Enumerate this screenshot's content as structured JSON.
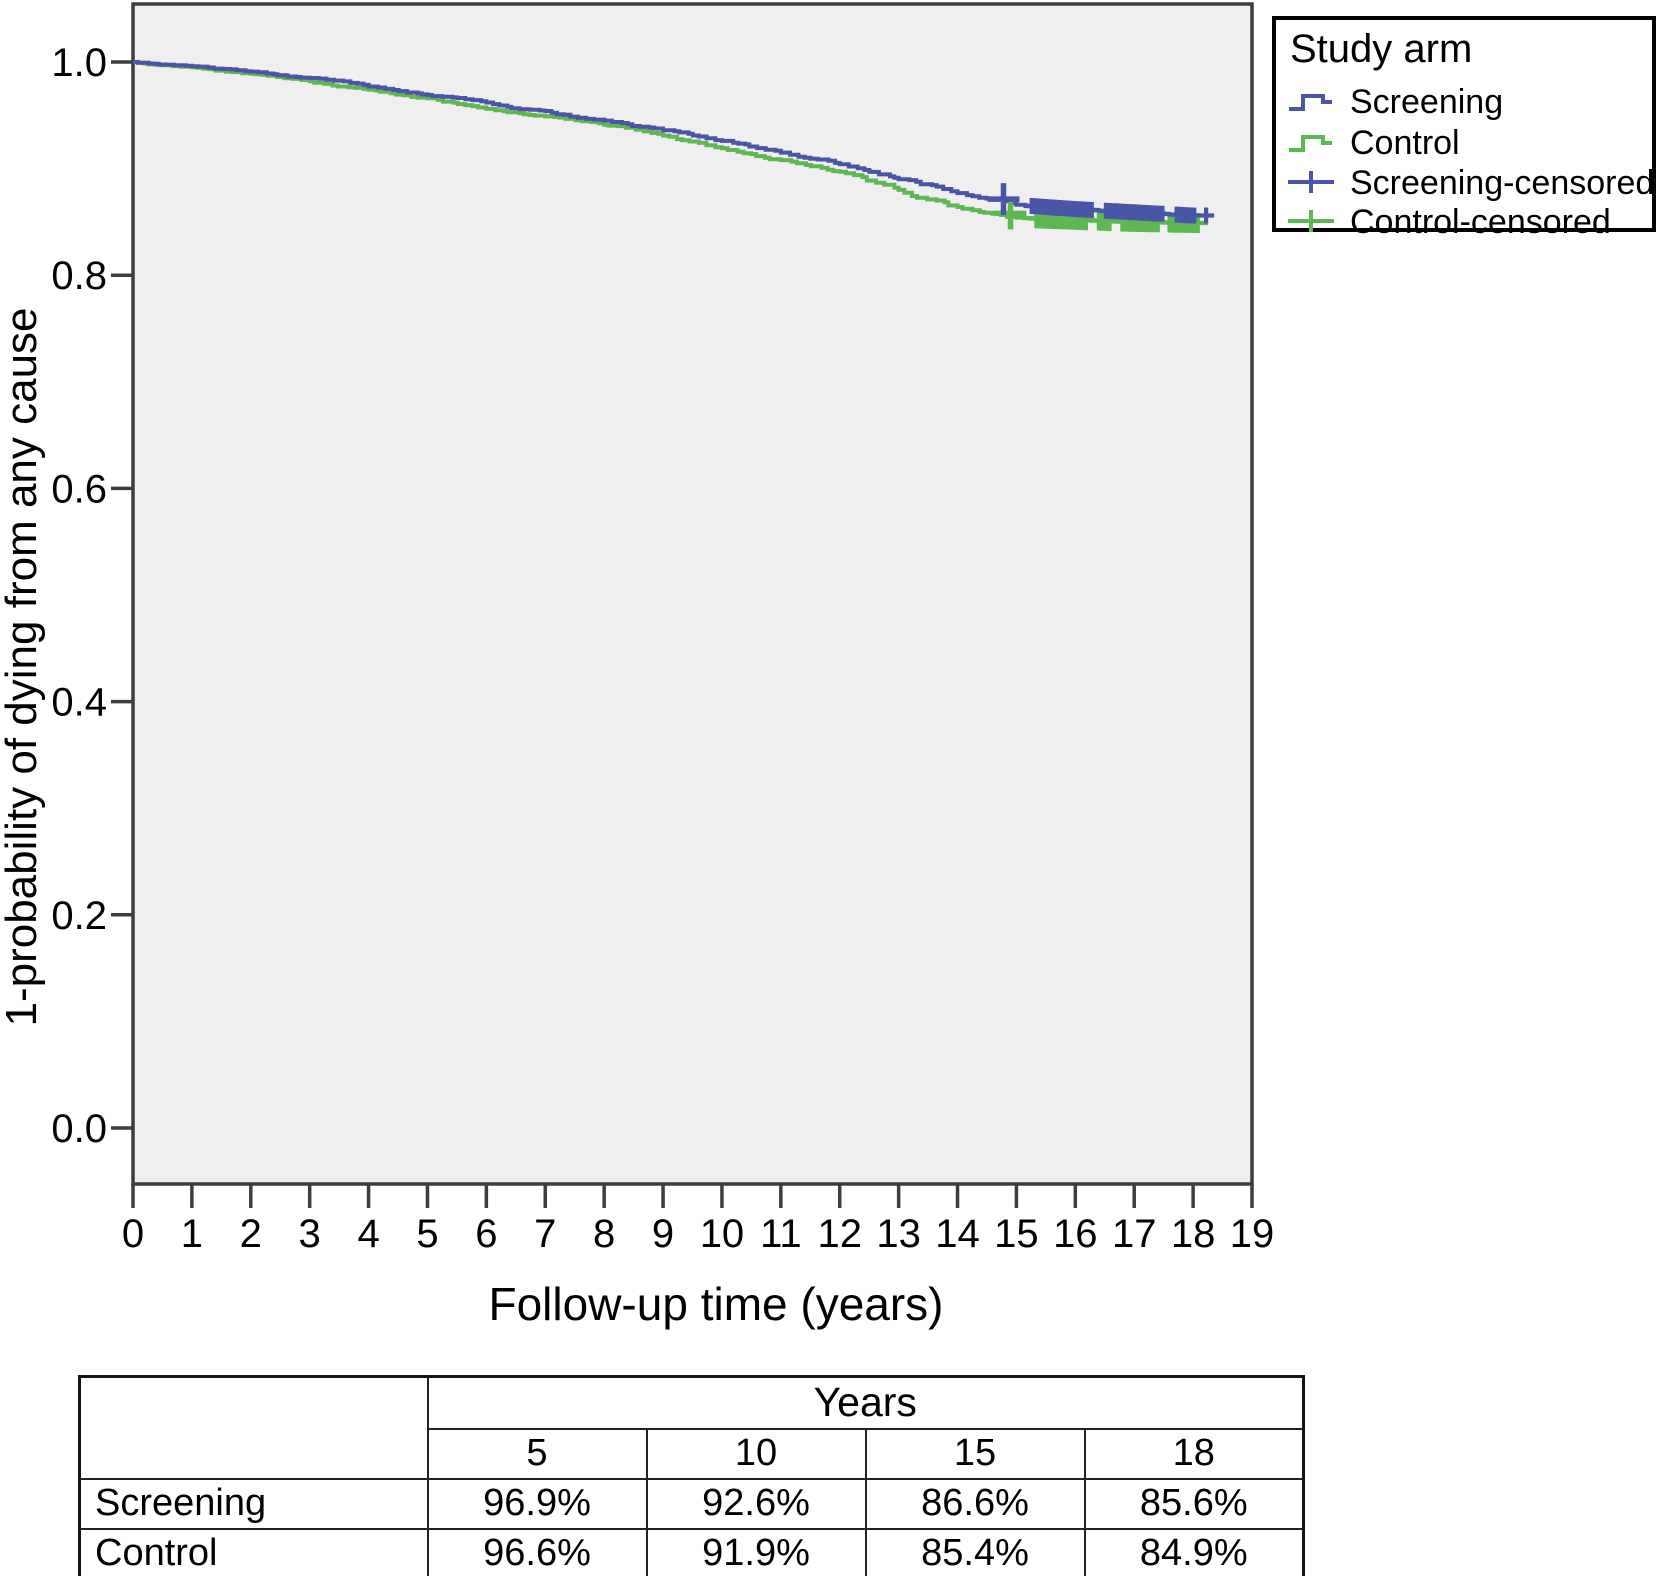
{
  "figure": {
    "x_axis_title": "Follow-up time (years)",
    "y_axis_title": "1-probability of dying from any cause"
  },
  "legend": {
    "title": "Study arm",
    "items": [
      {
        "label": "Screening",
        "color": "#4a55a8",
        "type": "line"
      },
      {
        "label": "Control",
        "color": "#5db854",
        "type": "line"
      },
      {
        "label": "Screening-censored",
        "color": "#4a55a8",
        "type": "plus"
      },
      {
        "label": "Control-censored",
        "color": "#5db854",
        "type": "plus"
      }
    ]
  },
  "chart_data": {
    "type": "line",
    "subtype": "kaplan-meier-survival",
    "title": "",
    "xlabel": "Follow-up time (years)",
    "ylabel": "1-probability of dying from any cause",
    "xlim": [
      0,
      19
    ],
    "ylim": [
      0.0,
      1.0
    ],
    "x_ticks": [
      0,
      1,
      2,
      3,
      4,
      5,
      6,
      7,
      8,
      9,
      10,
      11,
      12,
      13,
      14,
      15,
      16,
      17,
      18,
      19
    ],
    "y_ticks": [
      0.0,
      0.2,
      0.4,
      0.6,
      0.8,
      1.0
    ],
    "grid": false,
    "plot_bg": "#f0efef",
    "axis_color": "#3d3d3d",
    "legend_position": "outside-top-right",
    "series": [
      {
        "name": "Screening",
        "color": "#4a55a8",
        "anchors": [
          [
            0,
            1.0
          ],
          [
            1,
            0.996
          ],
          [
            2,
            0.991
          ],
          [
            3,
            0.985
          ],
          [
            4,
            0.977
          ],
          [
            5,
            0.969
          ],
          [
            6,
            0.962
          ],
          [
            7,
            0.954
          ],
          [
            8,
            0.945
          ],
          [
            9,
            0.936
          ],
          [
            10,
            0.926
          ],
          [
            11,
            0.915
          ],
          [
            12,
            0.904
          ],
          [
            13,
            0.89
          ],
          [
            14,
            0.877
          ],
          [
            15,
            0.866
          ],
          [
            16,
            0.862
          ],
          [
            17,
            0.859
          ],
          [
            18,
            0.856
          ],
          [
            18.35,
            0.856
          ]
        ],
        "major_censor": [
          14.78
        ],
        "censored": [
          15.26,
          15.32,
          15.38,
          15.44,
          15.5,
          15.56,
          15.62,
          15.68,
          15.74,
          15.8,
          15.86,
          15.92,
          15.98,
          16.04,
          16.1,
          16.16,
          16.22,
          16.28,
          16.52,
          16.58,
          16.64,
          16.7,
          16.76,
          16.82,
          16.88,
          16.94,
          17.0,
          17.06,
          17.12,
          17.18,
          17.24,
          17.3,
          17.36,
          17.42,
          17.48,
          17.72,
          17.78,
          17.84,
          17.9,
          17.96,
          18.02,
          18.22
        ]
      },
      {
        "name": "Control",
        "color": "#5db854",
        "anchors": [
          [
            0,
            1.0
          ],
          [
            1,
            0.995
          ],
          [
            2,
            0.989
          ],
          [
            3,
            0.982
          ],
          [
            4,
            0.974
          ],
          [
            5,
            0.966
          ],
          [
            6,
            0.956
          ],
          [
            7,
            0.949
          ],
          [
            8,
            0.941
          ],
          [
            9,
            0.931
          ],
          [
            10,
            0.919
          ],
          [
            11,
            0.908
          ],
          [
            12,
            0.897
          ],
          [
            13,
            0.88
          ],
          [
            14,
            0.864
          ],
          [
            15,
            0.854
          ],
          [
            16,
            0.852
          ],
          [
            17,
            0.85
          ],
          [
            18,
            0.849
          ],
          [
            18.2,
            0.849
          ]
        ],
        "major_censor": [
          14.9
        ],
        "censored": [
          15.34,
          15.4,
          15.46,
          15.52,
          15.58,
          15.64,
          15.7,
          15.76,
          15.82,
          15.88,
          15.94,
          16.0,
          16.06,
          16.12,
          16.18,
          16.4,
          16.46,
          16.52,
          16.58,
          16.8,
          16.86,
          16.92,
          16.98,
          17.04,
          17.1,
          17.16,
          17.22,
          17.28,
          17.34,
          17.4,
          17.6,
          17.66,
          17.72,
          17.78,
          17.84,
          17.9,
          17.96,
          18.02,
          18.08
        ]
      }
    ]
  },
  "table": {
    "group_header": "Years",
    "columns": [
      "5",
      "10",
      "15",
      "18"
    ],
    "rows": [
      {
        "label": "Screening",
        "values": [
          "96.9%",
          "92.6%",
          "86.6%",
          "85.6%"
        ]
      },
      {
        "label": "Control",
        "values": [
          "96.6%",
          "91.9%",
          "85.4%",
          "84.9%"
        ]
      }
    ]
  }
}
